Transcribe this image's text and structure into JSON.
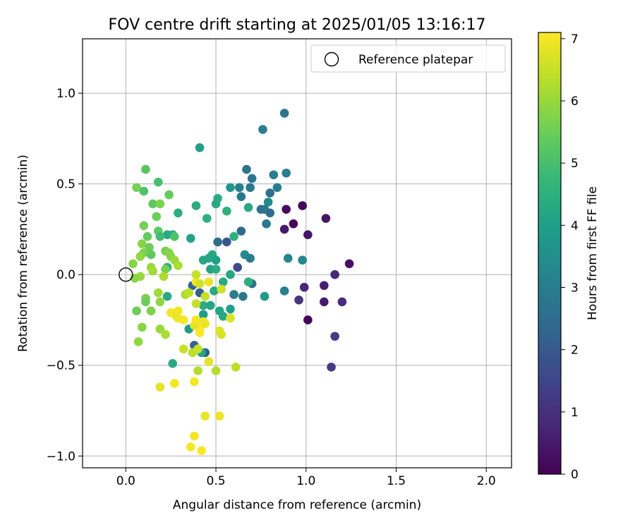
{
  "chart_data": {
    "type": "scatter",
    "title": "FOV centre drift starting at 2025/01/05 13:16:17",
    "xlabel": "Angular distance from reference (arcmin)",
    "ylabel": "Rotation from reference (arcmin)",
    "xlim": [
      -0.24,
      2.14
    ],
    "ylim": [
      -1.065,
      1.3
    ],
    "xticks": [
      0.0,
      0.5,
      1.0,
      1.5,
      2.0
    ],
    "xtick_labels": [
      "0.0",
      "0.5",
      "1.0",
      "1.5",
      "2.0"
    ],
    "yticks": [
      -1.0,
      -0.5,
      0.0,
      0.5,
      1.0
    ],
    "ytick_labels": [
      "−1.0",
      "−0.5",
      "0.0",
      "0.5",
      "1.0"
    ],
    "grid": true,
    "legend": {
      "position": "top-right",
      "entries": [
        "Reference platepar"
      ]
    },
    "reference_point": {
      "name": "Reference platepar",
      "x": 0.0,
      "y": 0.0,
      "marker": "open-circle"
    },
    "colorbar": {
      "label": "Hours from first FF file",
      "min": 0,
      "max": 7.1,
      "ticks": [
        0,
        1,
        2,
        3,
        4,
        5,
        6,
        7
      ],
      "tick_labels": [
        "0",
        "1",
        "2",
        "3",
        "4",
        "5",
        "6",
        "7"
      ],
      "colormap": "viridis",
      "colormap_stops": [
        "#440154",
        "#482878",
        "#3e4989",
        "#31688e",
        "#26828e",
        "#1f9e89",
        "#35b779",
        "#6ece58",
        "#b5de2b",
        "#fde725"
      ]
    },
    "series": [
      {
        "points": [
          {
            "x": 0.89,
            "y": 0.36,
            "h": 0.2
          },
          {
            "x": 0.93,
            "y": 0.28,
            "h": 0.1
          },
          {
            "x": 0.98,
            "y": 0.38,
            "h": 0.1
          },
          {
            "x": 1.01,
            "y": 0.22,
            "h": 0.4
          },
          {
            "x": 0.88,
            "y": 0.25,
            "h": 0.5
          },
          {
            "x": 1.11,
            "y": 0.31,
            "h": 0.4
          },
          {
            "x": 1.16,
            "y": 0.0,
            "h": 0.8
          },
          {
            "x": 1.24,
            "y": 0.06,
            "h": 0.3
          },
          {
            "x": 1.1,
            "y": -0.06,
            "h": 0.6
          },
          {
            "x": 0.99,
            "y": -0.07,
            "h": 0.8
          },
          {
            "x": 0.96,
            "y": -0.14,
            "h": 1.1
          },
          {
            "x": 1.1,
            "y": -0.15,
            "h": 0.5
          },
          {
            "x": 1.2,
            "y": -0.15,
            "h": 0.9
          },
          {
            "x": 1.01,
            "y": -0.25,
            "h": 0.1
          },
          {
            "x": 1.16,
            "y": -0.34,
            "h": 1.3
          },
          {
            "x": 1.14,
            "y": -0.51,
            "h": 1.3
          },
          {
            "x": 0.56,
            "y": 0.18,
            "h": 1.9
          },
          {
            "x": 0.62,
            "y": 0.04,
            "h": 1.6
          },
          {
            "x": 0.44,
            "y": -0.43,
            "h": 2.0
          },
          {
            "x": 0.38,
            "y": -0.39,
            "h": 2.2
          },
          {
            "x": 0.37,
            "y": -0.06,
            "h": 2.3
          },
          {
            "x": 0.41,
            "y": -0.1,
            "h": 2.2
          },
          {
            "x": 0.88,
            "y": 0.89,
            "h": 2.8
          },
          {
            "x": 0.76,
            "y": 0.8,
            "h": 3.0
          },
          {
            "x": 0.67,
            "y": 0.58,
            "h": 2.7
          },
          {
            "x": 0.89,
            "y": 0.56,
            "h": 3.0
          },
          {
            "x": 0.82,
            "y": 0.55,
            "h": 3.1
          },
          {
            "x": 0.7,
            "y": 0.53,
            "h": 2.8
          },
          {
            "x": 0.84,
            "y": 0.48,
            "h": 3.0
          },
          {
            "x": 0.69,
            "y": 0.48,
            "h": 2.9
          },
          {
            "x": 0.63,
            "y": 0.48,
            "h": 3.1
          },
          {
            "x": 0.8,
            "y": 0.45,
            "h": 2.6
          },
          {
            "x": 0.64,
            "y": 0.43,
            "h": 2.8
          },
          {
            "x": 0.79,
            "y": 0.4,
            "h": 3.4
          },
          {
            "x": 0.75,
            "y": 0.36,
            "h": 2.6
          },
          {
            "x": 0.77,
            "y": 0.36,
            "h": 2.8
          },
          {
            "x": 0.8,
            "y": 0.34,
            "h": 2.5
          },
          {
            "x": 0.78,
            "y": 0.28,
            "h": 2.9
          },
          {
            "x": 0.64,
            "y": 0.24,
            "h": 2.4
          },
          {
            "x": 0.51,
            "y": 0.18,
            "h": 2.5
          },
          {
            "x": 0.66,
            "y": 0.11,
            "h": 3.4
          },
          {
            "x": 0.69,
            "y": 0.09,
            "h": 3.0
          },
          {
            "x": 0.9,
            "y": 0.09,
            "h": 3.3
          },
          {
            "x": 0.98,
            "y": 0.08,
            "h": 3.3
          },
          {
            "x": 0.7,
            "y": -0.05,
            "h": 2.7
          },
          {
            "x": 0.65,
            "y": -0.12,
            "h": 2.8
          },
          {
            "x": 0.6,
            "y": -0.11,
            "h": 3.0
          },
          {
            "x": 0.88,
            "y": -0.09,
            "h": 3.1
          },
          {
            "x": 0.41,
            "y": 0.7,
            "h": 4.0
          },
          {
            "x": 0.58,
            "y": 0.48,
            "h": 3.8
          },
          {
            "x": 0.51,
            "y": 0.42,
            "h": 4.4
          },
          {
            "x": 0.5,
            "y": 0.39,
            "h": 4.3
          },
          {
            "x": 0.39,
            "y": 0.38,
            "h": 4.4
          },
          {
            "x": 0.56,
            "y": 0.35,
            "h": 4.5
          },
          {
            "x": 0.68,
            "y": 0.37,
            "h": 4.3
          },
          {
            "x": 0.29,
            "y": 0.34,
            "h": 4.4
          },
          {
            "x": 0.45,
            "y": 0.31,
            "h": 4.5
          },
          {
            "x": 0.26,
            "y": 0.22,
            "h": 4.4
          },
          {
            "x": 0.23,
            "y": 0.22,
            "h": 4.3
          },
          {
            "x": 0.36,
            "y": 0.2,
            "h": 4.1
          },
          {
            "x": 0.6,
            "y": 0.21,
            "h": 4.5
          },
          {
            "x": 0.48,
            "y": 0.11,
            "h": 4.3
          },
          {
            "x": 0.46,
            "y": 0.09,
            "h": 4.2
          },
          {
            "x": 0.43,
            "y": 0.08,
            "h": 4.2
          },
          {
            "x": 0.5,
            "y": 0.08,
            "h": 4.0
          },
          {
            "x": 0.23,
            "y": 0.04,
            "h": 4.4
          },
          {
            "x": 0.47,
            "y": 0.03,
            "h": 4.1
          },
          {
            "x": 0.5,
            "y": 0.03,
            "h": 4.4
          },
          {
            "x": 0.58,
            "y": 0.0,
            "h": 4.2
          },
          {
            "x": 0.68,
            "y": -0.04,
            "h": 4.5
          },
          {
            "x": 0.54,
            "y": -0.04,
            "h": 4.3
          },
          {
            "x": 0.49,
            "y": -0.09,
            "h": 4.3
          },
          {
            "x": 0.77,
            "y": -0.12,
            "h": 3.9
          },
          {
            "x": 0.23,
            "y": -0.12,
            "h": 4.3
          },
          {
            "x": 0.43,
            "y": -0.17,
            "h": 4.4
          },
          {
            "x": 0.47,
            "y": -0.17,
            "h": 4.2
          },
          {
            "x": 0.52,
            "y": -0.2,
            "h": 4.1
          },
          {
            "x": 0.58,
            "y": -0.19,
            "h": 4.0
          },
          {
            "x": 0.54,
            "y": -0.23,
            "h": 4.2
          },
          {
            "x": 0.43,
            "y": -0.22,
            "h": 4.0
          },
          {
            "x": 0.35,
            "y": -0.3,
            "h": 3.9
          },
          {
            "x": 0.26,
            "y": -0.49,
            "h": 4.3
          },
          {
            "x": 0.42,
            "y": -0.43,
            "h": 4.2
          },
          {
            "x": 0.11,
            "y": 0.58,
            "h": 5.2
          },
          {
            "x": 0.18,
            "y": 0.51,
            "h": 5.0
          },
          {
            "x": 0.06,
            "y": 0.48,
            "h": 5.6
          },
          {
            "x": 0.1,
            "y": 0.46,
            "h": 5.1
          },
          {
            "x": 0.24,
            "y": 0.44,
            "h": 5.4
          },
          {
            "x": 0.15,
            "y": 0.39,
            "h": 5.3
          },
          {
            "x": 0.19,
            "y": 0.39,
            "h": 5.7
          },
          {
            "x": 0.17,
            "y": 0.32,
            "h": 5.5
          },
          {
            "x": 0.1,
            "y": 0.27,
            "h": 5.6
          },
          {
            "x": 0.18,
            "y": 0.24,
            "h": 5.3
          },
          {
            "x": 0.12,
            "y": 0.21,
            "h": 5.4
          },
          {
            "x": 0.19,
            "y": 0.21,
            "h": 4.9
          },
          {
            "x": 0.27,
            "y": 0.21,
            "h": 5.1
          },
          {
            "x": 0.09,
            "y": 0.17,
            "h": 5.8
          },
          {
            "x": 0.13,
            "y": 0.15,
            "h": 5.5
          },
          {
            "x": 0.1,
            "y": 0.12,
            "h": 5.7
          },
          {
            "x": 0.22,
            "y": 0.13,
            "h": 5.6
          },
          {
            "x": 0.14,
            "y": 0.11,
            "h": 5.3
          },
          {
            "x": 0.24,
            "y": 0.12,
            "h": 5.8
          },
          {
            "x": 0.08,
            "y": 0.1,
            "h": 5.9
          },
          {
            "x": 0.25,
            "y": 0.1,
            "h": 5.8
          },
          {
            "x": 0.27,
            "y": 0.08,
            "h": 6.0
          },
          {
            "x": 0.04,
            "y": 0.06,
            "h": 5.8
          },
          {
            "x": 0.29,
            "y": 0.05,
            "h": 6.2
          },
          {
            "x": 0.14,
            "y": 0.04,
            "h": 6.0
          },
          {
            "x": 0.22,
            "y": 0.03,
            "h": 5.6
          },
          {
            "x": 0.15,
            "y": 0.02,
            "h": 6.1
          },
          {
            "x": 0.21,
            "y": -0.01,
            "h": 6.2
          },
          {
            "x": 0.08,
            "y": -0.01,
            "h": 6.0
          },
          {
            "x": 0.05,
            "y": -0.02,
            "h": 5.8
          },
          {
            "x": 0.18,
            "y": -0.1,
            "h": 6.1
          },
          {
            "x": 0.33,
            "y": -0.11,
            "h": 6.2
          },
          {
            "x": 0.11,
            "y": -0.13,
            "h": 5.7
          },
          {
            "x": 0.11,
            "y": -0.15,
            "h": 5.5
          },
          {
            "x": 0.19,
            "y": -0.15,
            "h": 5.9
          },
          {
            "x": 0.06,
            "y": -0.2,
            "h": 5.5
          },
          {
            "x": 0.14,
            "y": -0.2,
            "h": 5.7
          },
          {
            "x": 0.09,
            "y": -0.29,
            "h": 5.8
          },
          {
            "x": 0.19,
            "y": -0.3,
            "h": 6.0
          },
          {
            "x": 0.22,
            "y": -0.33,
            "h": 6.2
          },
          {
            "x": 0.07,
            "y": -0.37,
            "h": 5.9
          },
          {
            "x": 0.35,
            "y": -0.1,
            "h": 6.4
          },
          {
            "x": 0.53,
            "y": -0.08,
            "h": 6.6
          },
          {
            "x": 0.44,
            "y": -0.12,
            "h": 6.5
          },
          {
            "x": 0.39,
            "y": -0.16,
            "h": 6.5
          },
          {
            "x": 0.58,
            "y": -0.24,
            "h": 6.7
          },
          {
            "x": 0.52,
            "y": -0.31,
            "h": 6.8
          },
          {
            "x": 0.53,
            "y": -0.33,
            "h": 6.7
          },
          {
            "x": 0.41,
            "y": -0.3,
            "h": 6.6
          },
          {
            "x": 0.32,
            "y": -0.41,
            "h": 6.5
          },
          {
            "x": 0.37,
            "y": -0.43,
            "h": 6.4
          },
          {
            "x": 0.4,
            "y": -0.41,
            "h": 6.5
          },
          {
            "x": 0.46,
            "y": -0.48,
            "h": 6.8
          },
          {
            "x": 0.4,
            "y": -0.53,
            "h": 6.3
          },
          {
            "x": 0.5,
            "y": -0.53,
            "h": 6.3
          },
          {
            "x": 0.61,
            "y": -0.51,
            "h": 6.4
          },
          {
            "x": 0.38,
            "y": -0.59,
            "h": 7.0
          },
          {
            "x": 0.27,
            "y": -0.6,
            "h": 7.0
          },
          {
            "x": 0.19,
            "y": -0.62,
            "h": 6.8
          },
          {
            "x": 0.44,
            "y": -0.78,
            "h": 6.9
          },
          {
            "x": 0.52,
            "y": -0.78,
            "h": 6.9
          },
          {
            "x": 0.38,
            "y": -0.89,
            "h": 7.0
          },
          {
            "x": 0.36,
            "y": -0.95,
            "h": 7.0
          },
          {
            "x": 0.42,
            "y": -0.97,
            "h": 7.1
          },
          {
            "x": 0.39,
            "y": -0.04,
            "h": 7.0
          },
          {
            "x": 0.46,
            "y": -0.04,
            "h": 6.9
          },
          {
            "x": 0.39,
            "y": 0.0,
            "h": 6.5
          },
          {
            "x": 0.41,
            "y": -0.05,
            "h": 6.6
          },
          {
            "x": 0.29,
            "y": -0.2,
            "h": 7.0
          },
          {
            "x": 0.29,
            "y": -0.24,
            "h": 7.0
          },
          {
            "x": 0.25,
            "y": -0.21,
            "h": 7.0
          },
          {
            "x": 0.32,
            "y": -0.25,
            "h": 7.0
          },
          {
            "x": 0.28,
            "y": -0.23,
            "h": 6.9
          },
          {
            "x": 0.4,
            "y": -0.26,
            "h": 7.1
          },
          {
            "x": 0.42,
            "y": -0.27,
            "h": 7.0
          },
          {
            "x": 0.43,
            "y": -0.26,
            "h": 7.0
          },
          {
            "x": 0.41,
            "y": -0.3,
            "h": 7.1
          },
          {
            "x": 0.41,
            "y": -0.32,
            "h": 7.1
          },
          {
            "x": 0.44,
            "y": -0.27,
            "h": 6.9
          },
          {
            "x": 0.38,
            "y": -0.28,
            "h": 6.8
          },
          {
            "x": 0.39,
            "y": -0.25,
            "h": 7.0
          }
        ]
      }
    ]
  }
}
